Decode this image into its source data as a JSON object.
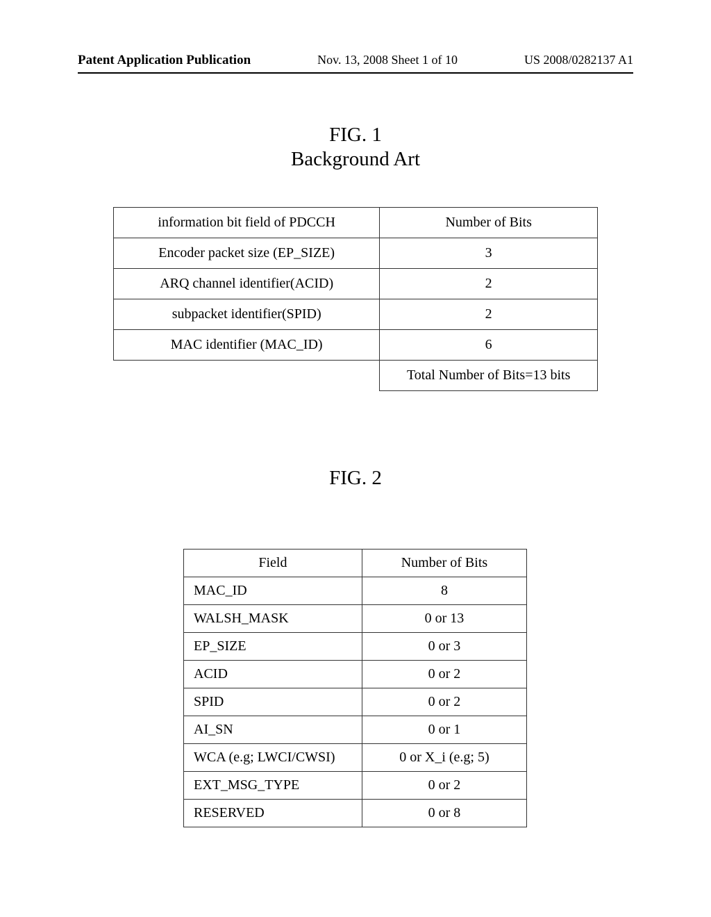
{
  "header": {
    "left": "Patent Application Publication",
    "center": "Nov. 13, 2008  Sheet 1 of 10",
    "right": "US 2008/0282137 A1"
  },
  "fig1": {
    "title_line1": "FIG. 1",
    "title_line2": "Background Art",
    "table": {
      "head_col1": "information bit field of PDCCH",
      "head_col2": "Number of Bits",
      "rows": [
        {
          "field": "Encoder packet size (EP_SIZE)",
          "bits": "3"
        },
        {
          "field": "ARQ channel identifier(ACID)",
          "bits": "2"
        },
        {
          "field": "subpacket identifier(SPID)",
          "bits": "2"
        },
        {
          "field": "MAC identifier (MAC_ID)",
          "bits": "6"
        }
      ],
      "total_label": "Total Number of Bits=13 bits"
    }
  },
  "fig2": {
    "title": "FIG. 2",
    "table": {
      "head_col1": "Field",
      "head_col2": "Number of Bits",
      "rows": [
        {
          "field": "MAC_ID",
          "bits": "8"
        },
        {
          "field": "WALSH_MASK",
          "bits": "0 or 13"
        },
        {
          "field": "EP_SIZE",
          "bits": "0 or 3"
        },
        {
          "field": "ACID",
          "bits": "0 or 2"
        },
        {
          "field": "SPID",
          "bits": "0 or 2"
        },
        {
          "field": "AI_SN",
          "bits": "0 or 1"
        },
        {
          "field": "WCA (e.g; LWCI/CWSI)",
          "bits": "0 or X_i (e.g; 5)"
        },
        {
          "field": "EXT_MSG_TYPE",
          "bits": "0 or 2"
        },
        {
          "field": "RESERVED",
          "bits": "0 or 8"
        }
      ]
    }
  }
}
